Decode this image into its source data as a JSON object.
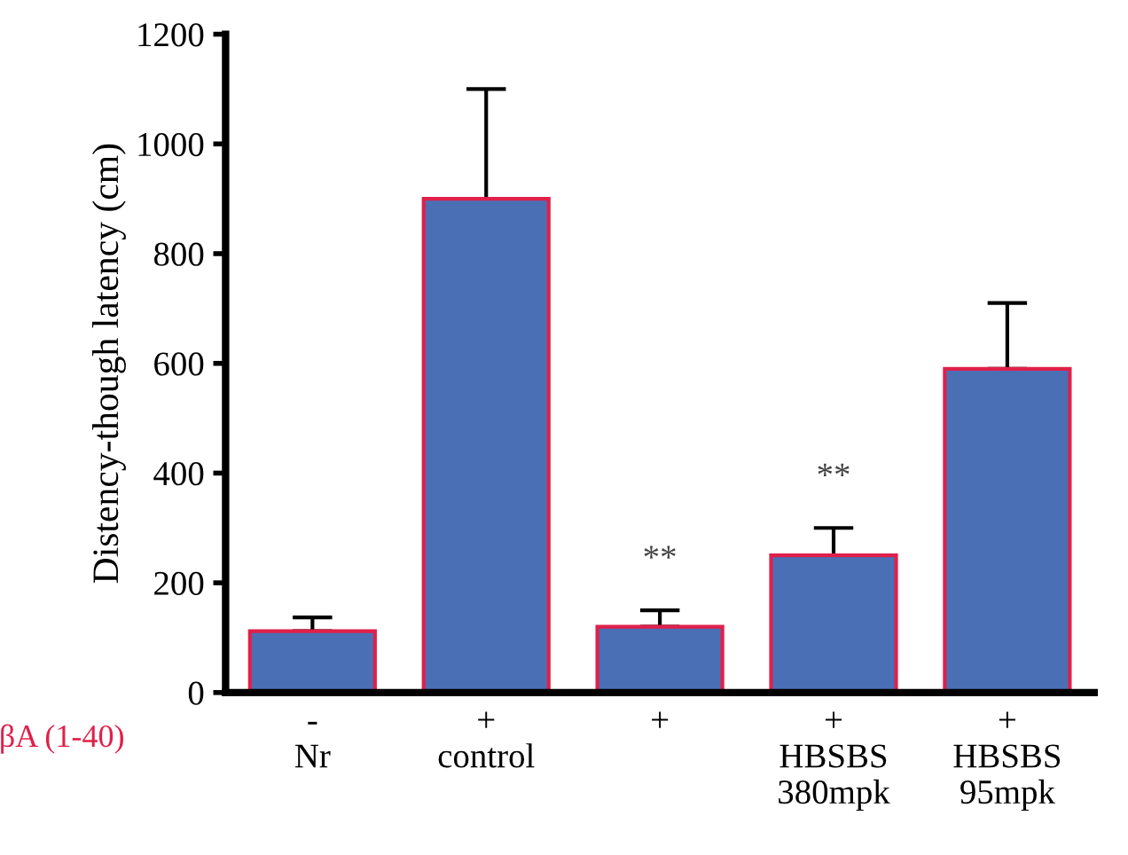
{
  "chart_data": {
    "type": "bar",
    "ylabel": "Distency-though latency (cm)",
    "categories": [
      "-\nNr",
      "+\ncontrol",
      "+",
      "+\nHBSBS\n380mpk",
      "+\nHBSBS\n95mpk"
    ],
    "series": [
      {
        "color": "#4a6fb5",
        "values": [
          112,
          900,
          120,
          250,
          590
        ],
        "errors": [
          [
            112,
            137
          ],
          [
            900,
            1100
          ],
          [
            120,
            150
          ],
          [
            250,
            300
          ],
          [
            590,
            710
          ]
        ]
      }
    ],
    "ylim": [
      0,
      1200
    ],
    "yticks": [
      0,
      200,
      400,
      600,
      800,
      1000,
      1200
    ],
    "grid": false,
    "annotations": [
      "βA (1-40)",
      "**",
      "**"
    ]
  }
}
